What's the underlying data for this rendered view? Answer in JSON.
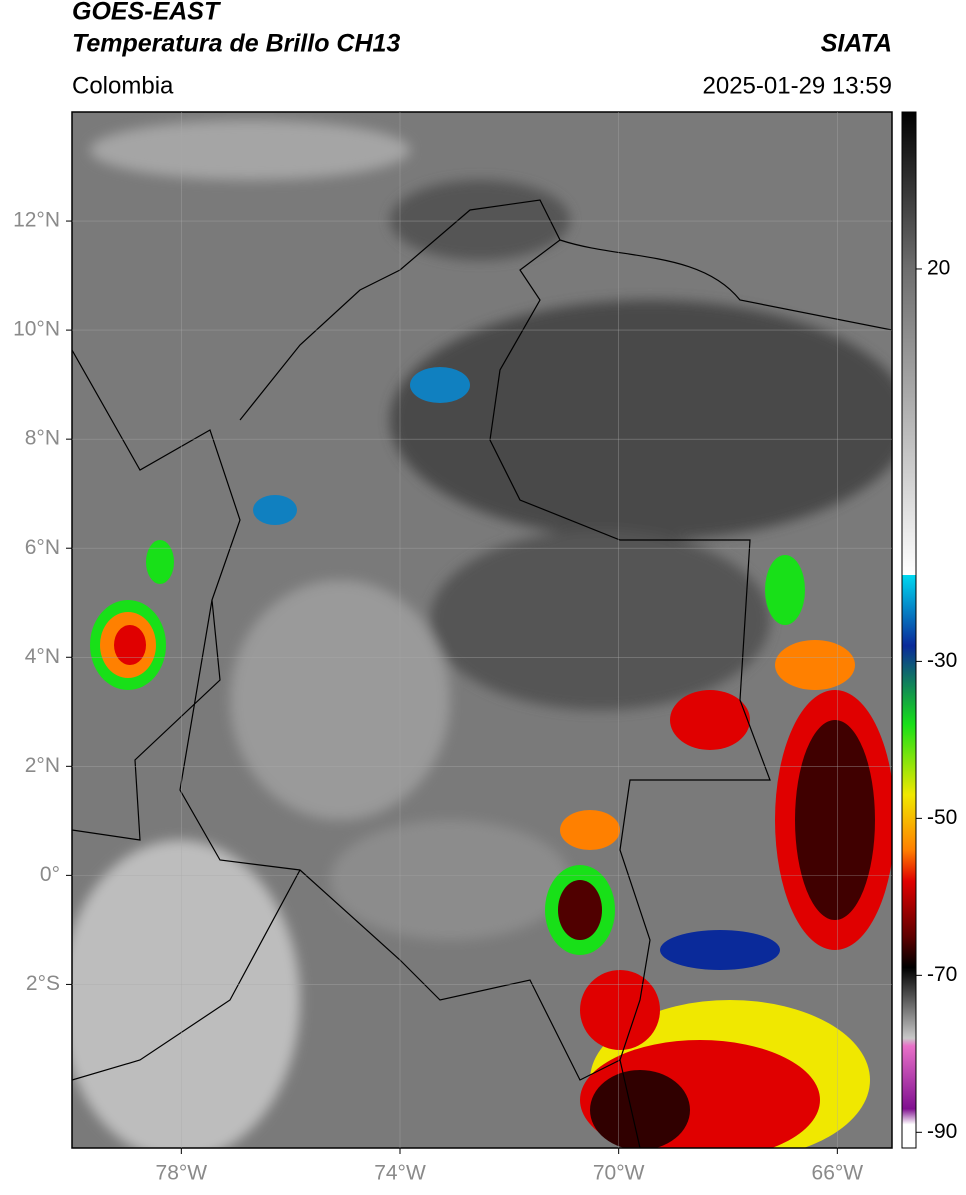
{
  "header": {
    "title": "GOES-EAST",
    "subtitle": "Temperatura de Brillo CH13",
    "source": "SIATA",
    "region": "Colombia",
    "timestamp": "2025-01-29 13:59"
  },
  "map": {
    "lonlim": [
      -80,
      -65
    ],
    "latlim": [
      -5,
      14
    ],
    "lon_ticks": [
      {
        "value": -78,
        "label": "78°W"
      },
      {
        "value": -74,
        "label": "74°W"
      },
      {
        "value": -70,
        "label": "70°W"
      },
      {
        "value": -66,
        "label": "66°W"
      }
    ],
    "lat_ticks": [
      {
        "value": 12,
        "label": "12°N"
      },
      {
        "value": 10,
        "label": "10°N"
      },
      {
        "value": 8,
        "label": "8°N"
      },
      {
        "value": 6,
        "label": "6°N"
      },
      {
        "value": 4,
        "label": "4°N"
      },
      {
        "value": 2,
        "label": "2°N"
      },
      {
        "value": 0,
        "label": "0°"
      },
      {
        "value": -2,
        "label": "2°S"
      }
    ]
  },
  "colorbar": {
    "lim": [
      -92,
      40
    ],
    "ticks": [
      20,
      -30,
      -50,
      -70,
      -90
    ],
    "stops": [
      {
        "value": 40,
        "color": "#000000"
      },
      {
        "value": 20,
        "color": "#6e6e6e"
      },
      {
        "value": -19,
        "color": "#ffffff"
      },
      {
        "value": -19,
        "color": "#00d8f0"
      },
      {
        "value": -28,
        "color": "#0a2a9a"
      },
      {
        "value": -38,
        "color": "#18e018"
      },
      {
        "value": -47,
        "color": "#f0e800"
      },
      {
        "value": -54,
        "color": "#ff8000"
      },
      {
        "value": -58,
        "color": "#e00000"
      },
      {
        "value": -65,
        "color": "#600000"
      },
      {
        "value": -69,
        "color": "#000000"
      },
      {
        "value": -78,
        "color": "#c8c8c8"
      },
      {
        "value": -79,
        "color": "#e870c8"
      },
      {
        "value": -87,
        "color": "#801090"
      },
      {
        "value": -89,
        "color": "#ffffff"
      }
    ]
  }
}
